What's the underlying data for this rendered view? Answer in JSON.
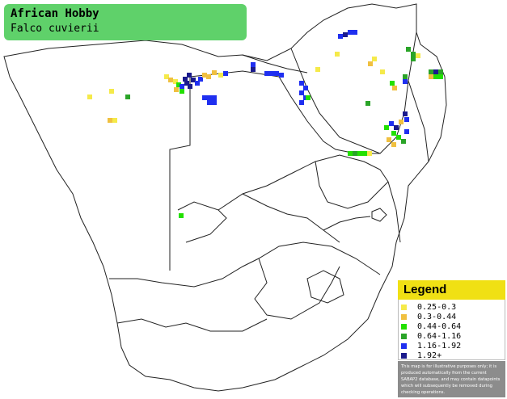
{
  "title": {
    "common_name": "African Hobby",
    "scientific_name": "Falco cuvierii"
  },
  "legend": {
    "heading": "Legend",
    "items": [
      {
        "label": "0.25-0.3",
        "color": "#f5ea4a"
      },
      {
        "label": "0.3-0.44",
        "color": "#f0c040"
      },
      {
        "label": "0.44-0.64",
        "color": "#22e000"
      },
      {
        "label": "0.64-1.16",
        "color": "#2aa428"
      },
      {
        "label": "1.16-1.92",
        "color": "#1f2ff0"
      },
      {
        "label": "1.92+",
        "color": "#1a1a8c"
      }
    ],
    "disclaimer": "This map is for illustrative purposes only; it is produced automatically from the current SABAP2 database, and may contain datapoints which will subsequently be removed during checking operations."
  }
}
